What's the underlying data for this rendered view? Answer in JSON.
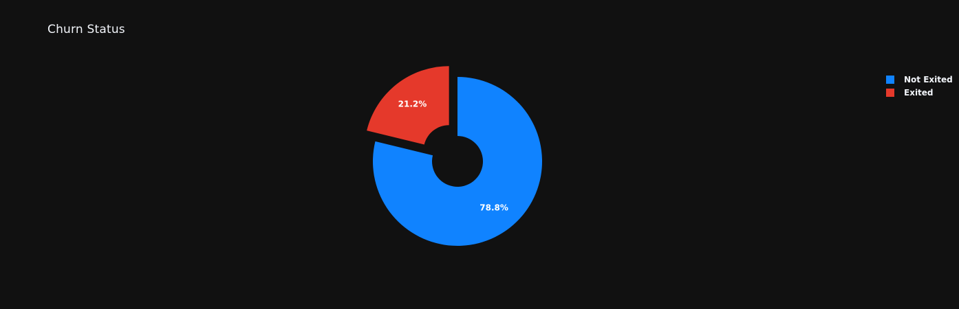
{
  "chart_data": {
    "type": "pie",
    "title": "Churn Status",
    "hole": true,
    "labels": [
      "Not Exited",
      "Exited"
    ],
    "values": [
      78.8,
      21.2
    ],
    "value_labels": [
      "78.8%",
      "21.2%"
    ],
    "colors": [
      "#1083ff",
      "#e5392b"
    ],
    "pulled_slice": "Exited",
    "legend_position": "top-right"
  }
}
